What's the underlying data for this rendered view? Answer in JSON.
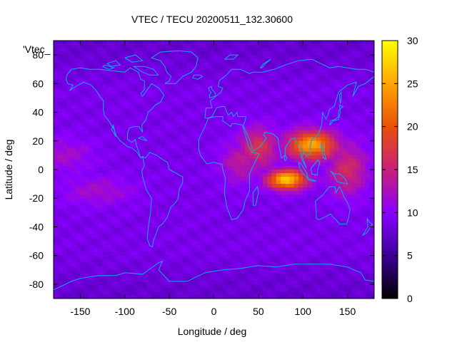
{
  "chart_data": {
    "type": "heatmap",
    "title": "VTEC / TECU 20200511_132.30600",
    "xlabel": "Longitude / deg",
    "ylabel": "Latitude / deg",
    "legend_label": "'Vtec_",
    "xlim": [
      -180,
      180
    ],
    "ylim": [
      -90,
      90
    ],
    "x_ticks": [
      -150,
      -100,
      -50,
      0,
      50,
      100,
      150
    ],
    "y_ticks": [
      -80,
      -60,
      -40,
      -20,
      0,
      20,
      40,
      60,
      80
    ],
    "colorbar": {
      "range": [
        0,
        30
      ],
      "ticks": [
        0,
        5,
        10,
        15,
        20,
        25,
        30
      ],
      "palette": [
        "#000000",
        "#3a0096",
        "#8a00ff",
        "#c8207a",
        "#e8500a",
        "#ffa400",
        "#ffff00"
      ]
    },
    "grid": false,
    "background_vtec": 9,
    "features": [
      {
        "name": "Asia daytime crest north",
        "lon": 110,
        "lat": 17,
        "peak_vtec": 25
      },
      {
        "name": "Indian Ocean crest south",
        "lon": 82,
        "lat": -7,
        "peak_vtec": 27
      },
      {
        "name": "Arabian Sea enhancement",
        "lon": 50,
        "lat": 15,
        "peak_vtec": 17
      },
      {
        "name": "Central Africa enhancement",
        "lon": 30,
        "lat": 5,
        "peak_vtec": 14
      },
      {
        "name": "Western Pacific enhancement",
        "lon": 150,
        "lat": 0,
        "peak_vtec": 16
      },
      {
        "name": "South Pacific band",
        "lon": -130,
        "lat": -15,
        "peak_vtec": 12
      },
      {
        "name": "Eastern Pacific band",
        "lon": -170,
        "lat": 10,
        "peak_vtec": 12
      }
    ],
    "overlay": "coastlines"
  },
  "colors": {
    "coastline": "#10a8f0",
    "frame": "#000000",
    "text": "#000000"
  }
}
